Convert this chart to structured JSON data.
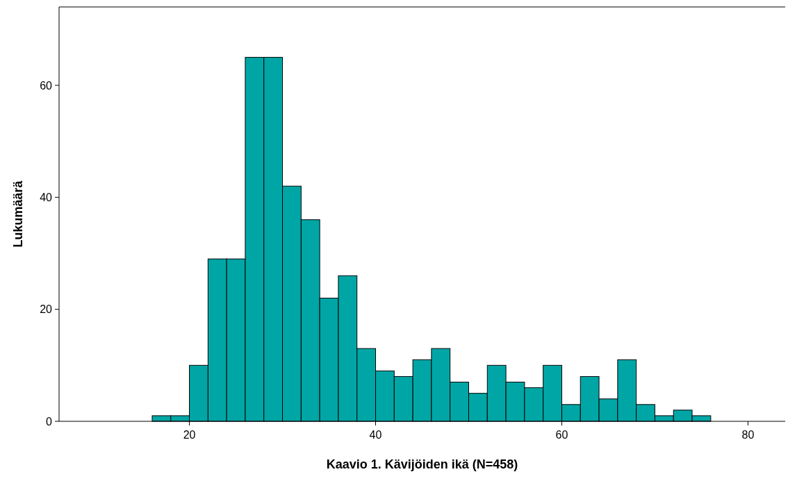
{
  "chart_data": {
    "type": "histogram",
    "xlabel": "Kaavio 1. Kävijöiden ikä (N=458)",
    "ylabel": "Lukumäärä",
    "bins": [
      16,
      18,
      20,
      22,
      24,
      26,
      28,
      30,
      32,
      34,
      36,
      38,
      40,
      42,
      44,
      46,
      48,
      50,
      52,
      54,
      56,
      58,
      60,
      62,
      64,
      66,
      68,
      70,
      72,
      74,
      76
    ],
    "values": [
      1,
      1,
      10,
      29,
      29,
      65,
      65,
      42,
      36,
      22,
      26,
      13,
      9,
      8,
      11,
      13,
      7,
      5,
      10,
      7,
      6,
      10,
      3,
      8,
      4,
      11,
      3,
      1,
      2,
      1
    ],
    "color": "#00a6a6",
    "xlim": [
      6,
      84
    ],
    "ylim": [
      0,
      74
    ],
    "xticks": [
      20,
      40,
      60,
      80
    ],
    "yticks": [
      0,
      20,
      40,
      60
    ]
  }
}
